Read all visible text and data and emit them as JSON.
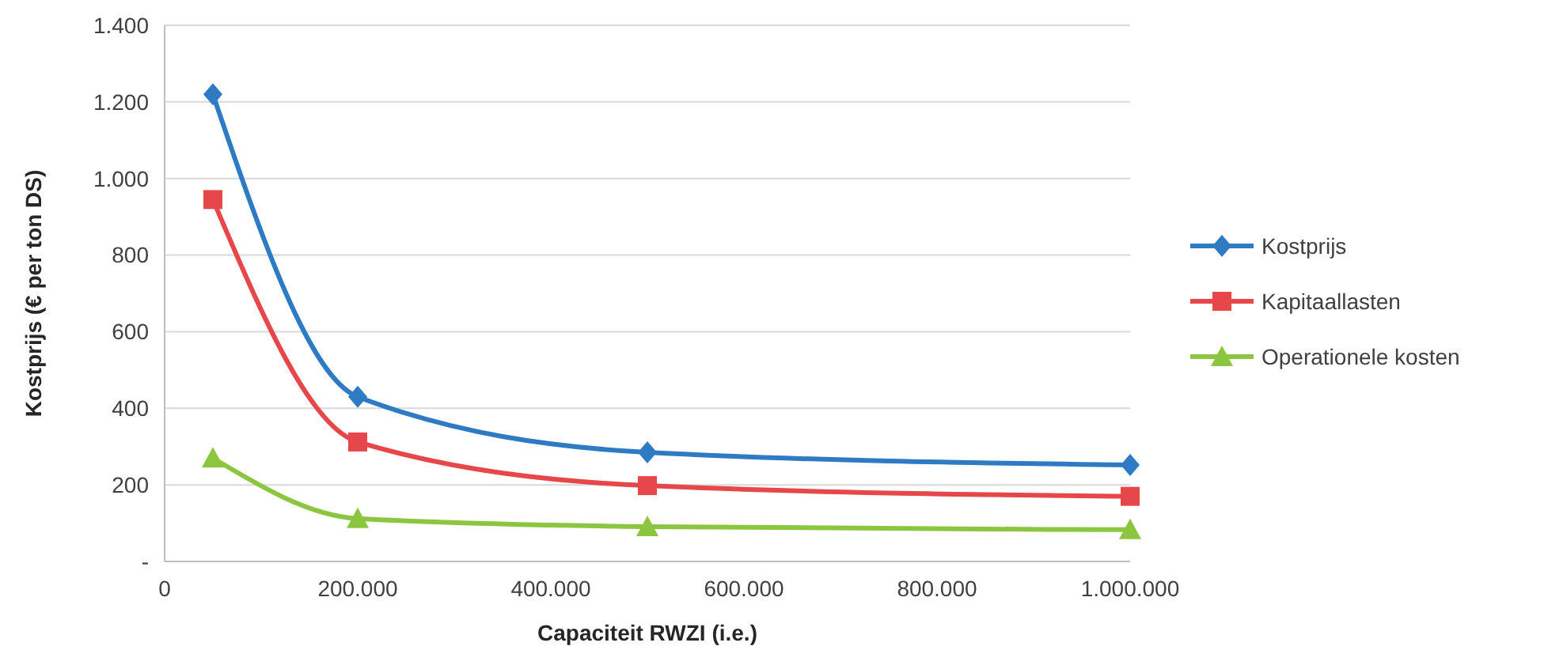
{
  "chart_data": {
    "type": "line",
    "xlabel": "Capaciteit RWZI (i.e.)",
    "ylabel": "Kostprijs (€ per ton DS)",
    "x": [
      50000,
      200000,
      500000,
      1000000
    ],
    "series": [
      {
        "name": "Kostprijs",
        "color": "#2e7bc4",
        "marker": "diamond",
        "values": [
          1220,
          430,
          285,
          252
        ]
      },
      {
        "name": "Kapitaallasten",
        "color": "#e5474a",
        "marker": "square",
        "values": [
          945,
          312,
          198,
          170
        ]
      },
      {
        "name": "Operationele kosten",
        "color": "#8cc641",
        "marker": "triangle",
        "values": [
          270,
          112,
          91,
          83
        ]
      }
    ],
    "xlim": [
      0,
      1000000
    ],
    "ylim": [
      0,
      1400
    ],
    "xticks": [
      0,
      {
        "value": 200000,
        "label": "200.000"
      },
      {
        "value": 400000,
        "label": "400.000"
      },
      {
        "value": 600000,
        "label": "600.000"
      },
      {
        "value": 800000,
        "label": "800.000"
      },
      {
        "value": 1000000,
        "label": "1.000.000"
      }
    ],
    "yticks": [
      {
        "value": 0,
        "label": "-"
      },
      200,
      400,
      600,
      800,
      {
        "value": 1000,
        "label": "1.000"
      },
      {
        "value": 1200,
        "label": "1.200"
      },
      {
        "value": 1400,
        "label": "1.400"
      }
    ],
    "grid": "y",
    "legend": "right"
  }
}
